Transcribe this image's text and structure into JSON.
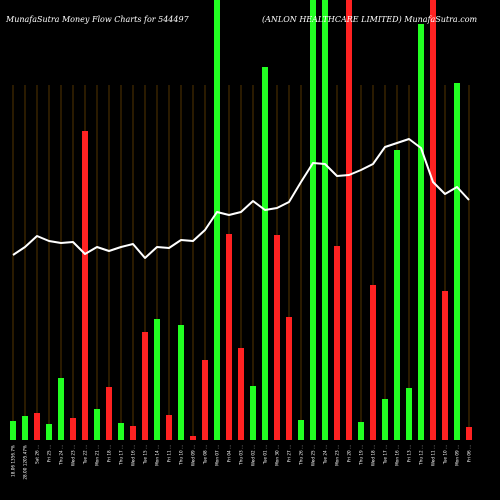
{
  "chart_data": {
    "type": "bar",
    "title_left": "MunafaSutra  Money Flow  Charts for 544497",
    "title_right": "(ANLON HEALTHCARE LIMITED) MunafaSutra.com",
    "colors": {
      "background": "#000000",
      "grid": "#8B5A00",
      "up": "#22ff22",
      "down": "#ff2222",
      "line": "#ffffff"
    },
    "categories": [
      "18.06 1356.7%",
      "28.00 1205.47%",
      "Sat 26 ...",
      "Fri 25 ...",
      "Thu 24 ...",
      "Wed 23 ...",
      "Tue 22 ...",
      "Mon 21 ...",
      "Fri 18 ...",
      "Thu 17 ...",
      "Wed 16 ...",
      "Tue 15 ...",
      "Mon 14 ...",
      "Fri 11 ...",
      "Thu 10 ...",
      "Wed 09 ...",
      "Tue 08 ...",
      "Mon 07 ...",
      "Fri 04 ...",
      "Thu 03 ...",
      "Wed 02 ...",
      "Tue 01 ...",
      "Mon 30 ...",
      "Fri 27 ...",
      "Thu 26 ...",
      "Wed 25 ...",
      "Tue 24 ...",
      "Mon 23 ...",
      "Fri 20 ...",
      "Thu 19 ...",
      "Wed 18 ...",
      "Tue 17 ...",
      "Mon 16 ...",
      "Fri 13 ...",
      "Thu 12 ...",
      "Wed 11 ...",
      "Tue 10 ...",
      "Mon 09 ...",
      "Fri 06 ..."
    ],
    "bars": [
      {
        "value": 19,
        "dir": "up"
      },
      {
        "value": 24,
        "dir": "up"
      },
      {
        "value": 27,
        "dir": "down"
      },
      {
        "value": 16,
        "dir": "up"
      },
      {
        "value": 62,
        "dir": "up"
      },
      {
        "value": 22,
        "dir": "down"
      },
      {
        "value": 309,
        "dir": "down"
      },
      {
        "value": 31,
        "dir": "up"
      },
      {
        "value": 53,
        "dir": "down"
      },
      {
        "value": 17,
        "dir": "up"
      },
      {
        "value": 14,
        "dir": "down"
      },
      {
        "value": 108,
        "dir": "down"
      },
      {
        "value": 121,
        "dir": "up"
      },
      {
        "value": 25,
        "dir": "down"
      },
      {
        "value": 115,
        "dir": "up"
      },
      {
        "value": 4,
        "dir": "down"
      },
      {
        "value": 80,
        "dir": "down"
      },
      {
        "value": 440,
        "dir": "up"
      },
      {
        "value": 206,
        "dir": "down"
      },
      {
        "value": 92,
        "dir": "down"
      },
      {
        "value": 54,
        "dir": "up"
      },
      {
        "value": 373,
        "dir": "up"
      },
      {
        "value": 205,
        "dir": "down"
      },
      {
        "value": 123,
        "dir": "down"
      },
      {
        "value": 20,
        "dir": "up"
      },
      {
        "value": 440,
        "dir": "up"
      },
      {
        "value": 440,
        "dir": "up"
      },
      {
        "value": 194,
        "dir": "down"
      },
      {
        "value": 440,
        "dir": "down"
      },
      {
        "value": 18,
        "dir": "up"
      },
      {
        "value": 155,
        "dir": "down"
      },
      {
        "value": 41,
        "dir": "up"
      },
      {
        "value": 290,
        "dir": "up"
      },
      {
        "value": 52,
        "dir": "up"
      },
      {
        "value": 416,
        "dir": "up"
      },
      {
        "value": 440,
        "dir": "down"
      },
      {
        "value": 149,
        "dir": "down"
      },
      {
        "value": 357,
        "dir": "up"
      },
      {
        "value": 13,
        "dir": "down"
      }
    ],
    "line": [
      185,
      193,
      204,
      199,
      197,
      198,
      186,
      193,
      189,
      193,
      196,
      182,
      193,
      192,
      200,
      199,
      210,
      228,
      225,
      228,
      239,
      230,
      232,
      238,
      258,
      277,
      276,
      264,
      265,
      270,
      276,
      293,
      297,
      301,
      292,
      258,
      246,
      253,
      240
    ],
    "ylim": [
      0,
      440
    ]
  }
}
